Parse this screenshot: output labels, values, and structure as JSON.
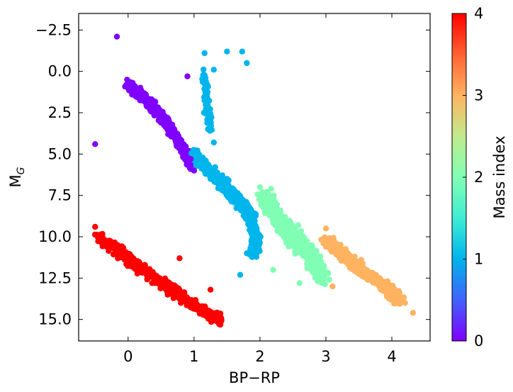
{
  "chart_data": {
    "type": "scatter",
    "xlabel": "BP−RP",
    "ylabel_main": "M",
    "ylabel_sub": "G",
    "xlim": [
      -0.75,
      4.58
    ],
    "ylim": [
      -3.5,
      16.3
    ],
    "y_inverted": true,
    "xticks": [
      0,
      1,
      2,
      3,
      4
    ],
    "xtick_labels": [
      "0",
      "1",
      "2",
      "3",
      "4"
    ],
    "yticks": [
      -2.5,
      0.0,
      2.5,
      5.0,
      7.5,
      10.0,
      12.5,
      15.0
    ],
    "ytick_labels": [
      "−2.5",
      "0.0",
      "2.5",
      "5.0",
      "7.5",
      "10.0",
      "12.5",
      "15.0"
    ],
    "colorbar": {
      "label": "Mass index",
      "range": [
        0,
        4
      ],
      "ticks": [
        0,
        1,
        2,
        3,
        4
      ],
      "tick_labels": [
        "0",
        "1",
        "2",
        "3",
        "4"
      ],
      "colormap": "rainbow"
    },
    "series": [
      {
        "mass_index": 0,
        "color": "#8000ff",
        "description_points": [
          [
            -0.17,
            -2.1
          ],
          [
            0.9,
            0.3
          ],
          [
            -0.5,
            4.4
          ],
          [
            0.0,
            0.6
          ],
          [
            0.2,
            1.3
          ],
          [
            0.4,
            2.2
          ],
          [
            0.6,
            3.0
          ],
          [
            0.8,
            4.2
          ],
          [
            0.95,
            5.3
          ],
          [
            1.0,
            6.0
          ]
        ]
      },
      {
        "mass_index": 1,
        "color": "#00b4ec",
        "description_points": [
          [
            1.16,
            -1.1
          ],
          [
            1.5,
            -1.2
          ],
          [
            1.73,
            -1.2
          ],
          [
            1.8,
            -0.5
          ],
          [
            1.3,
            -0.1
          ],
          [
            1.2,
            0.8
          ],
          [
            1.15,
            2.5
          ],
          [
            1.3,
            4.3
          ],
          [
            1.5,
            6.5
          ],
          [
            1.8,
            8.0
          ],
          [
            1.95,
            9.5
          ],
          [
            1.8,
            11.0
          ],
          [
            1.7,
            12.3
          ]
        ]
      },
      {
        "mass_index": 2,
        "color": "#80ffb4",
        "description_points": [
          [
            2.0,
            7.0
          ],
          [
            2.1,
            8.5
          ],
          [
            2.3,
            9.5
          ],
          [
            2.5,
            10.3
          ],
          [
            2.7,
            11.0
          ],
          [
            2.9,
            12.0
          ],
          [
            2.6,
            12.8
          ],
          [
            2.2,
            12.0
          ]
        ]
      },
      {
        "mass_index": 3,
        "color": "#ffb360",
        "description_points": [
          [
            3.0,
            9.5
          ],
          [
            3.2,
            10.5
          ],
          [
            3.4,
            11.3
          ],
          [
            3.6,
            12.0
          ],
          [
            3.8,
            12.8
          ],
          [
            4.0,
            13.3
          ],
          [
            4.2,
            14.0
          ],
          [
            4.32,
            14.6
          ],
          [
            3.1,
            13.0
          ]
        ]
      },
      {
        "mass_index": 4,
        "color": "#ff0000",
        "description_points": [
          [
            -0.5,
            9.4
          ],
          [
            -0.3,
            10.5
          ],
          [
            0.0,
            11.2
          ],
          [
            0.2,
            12.0
          ],
          [
            0.4,
            12.8
          ],
          [
            0.6,
            13.5
          ],
          [
            0.8,
            14.0
          ],
          [
            1.1,
            14.5
          ],
          [
            1.4,
            15.2
          ],
          [
            1.25,
            13.2
          ],
          [
            0.78,
            11.3
          ]
        ]
      }
    ]
  }
}
